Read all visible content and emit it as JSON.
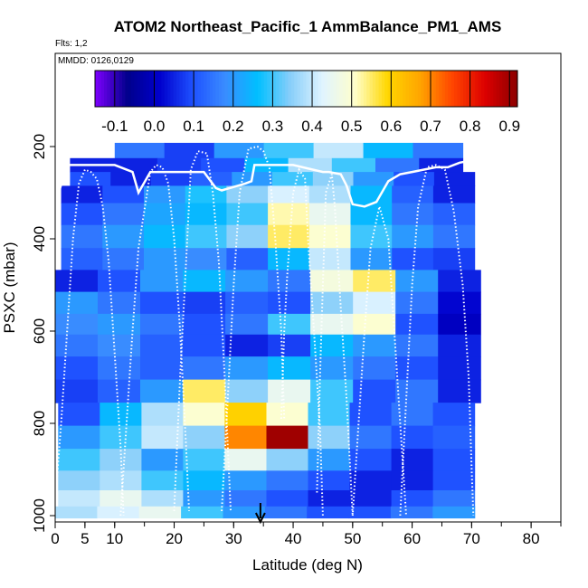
{
  "chart_data": {
    "type": "heatmap",
    "title": "ATOM2 Northeast_Pacific_1 AmmBalance_PM1_AMS",
    "flights_label": "Flts: 1,2",
    "dates_label": "MMDD: 0126,0129",
    "xlabel": "Latitude (deg N)",
    "ylabel": "PSXC (mbar)",
    "xlim": [
      0,
      85
    ],
    "ylim": [
      1000,
      0
    ],
    "x_ticks": [
      0,
      5,
      10,
      20,
      30,
      40,
      50,
      60,
      70,
      80
    ],
    "y_ticks": [
      200,
      400,
      600,
      800,
      1000
    ],
    "colorbar": {
      "ticks": [
        -0.1,
        0.0,
        0.1,
        0.2,
        0.3,
        0.4,
        0.5,
        0.6,
        0.7,
        0.8,
        0.9
      ],
      "range": [
        -0.15,
        0.92
      ],
      "colors": [
        "#7f00ff",
        "#00008b",
        "#0000cd",
        "#1e50ff",
        "#3a8cff",
        "#00bfff",
        "#87cefa",
        "#e0f4ff",
        "#ffffcc",
        "#ffd700",
        "#ffa500",
        "#ff4500",
        "#dd0000",
        "#8b0000"
      ]
    },
    "marker_latitude": 34.5,
    "layers": [
      {
        "p": 210,
        "x0": 10.0,
        "x1": 68.5,
        "v": [
          0.15,
          0.08,
          0.2,
          0.3,
          0.4,
          0.25,
          0.15
        ]
      },
      {
        "p": 240,
        "x0": 2.5,
        "x1": 68.5,
        "v": [
          0.05,
          0.05,
          0.08,
          0.1,
          0.25,
          0.38,
          0.3,
          0.15,
          0.05
        ]
      },
      {
        "p": 270,
        "x0": 2.5,
        "x1": 70.5,
        "v": [
          0.1,
          0.05,
          0.08,
          0.12,
          0.2,
          0.3,
          0.35,
          0.2,
          0.1,
          0.05
        ]
      },
      {
        "p": 300,
        "x0": 1.0,
        "x1": 70.5,
        "v": [
          0.05,
          0.1,
          0.2,
          0.28,
          0.35,
          0.42,
          0.38,
          0.25,
          0.12,
          0.05
        ]
      },
      {
        "p": 345,
        "x0": 1.0,
        "x1": 70.5,
        "v": [
          0.1,
          0.15,
          0.22,
          0.25,
          0.3,
          0.52,
          0.45,
          0.25,
          0.15,
          0.12
        ]
      },
      {
        "p": 395,
        "x0": 1.0,
        "x1": 70.5,
        "v": [
          0.15,
          0.2,
          0.25,
          0.3,
          0.35,
          0.55,
          0.5,
          0.3,
          0.2,
          0.15
        ]
      },
      {
        "p": 445,
        "x0": 1.0,
        "x1": 70.5,
        "v": [
          0.12,
          0.15,
          0.2,
          0.18,
          0.12,
          0.25,
          0.4,
          0.2,
          0.1,
          0.08
        ]
      },
      {
        "p": 490,
        "x0": 0.0,
        "x1": 71.5,
        "v": [
          0.05,
          0.1,
          0.2,
          0.25,
          0.2,
          0.15,
          0.48,
          0.55,
          0.2,
          0.05
        ]
      },
      {
        "p": 540,
        "x0": 0.0,
        "x1": 71.5,
        "v": [
          0.2,
          0.15,
          0.1,
          0.08,
          0.12,
          0.1,
          0.35,
          0.42,
          0.15,
          0.02
        ]
      },
      {
        "p": 585,
        "x0": 0.0,
        "x1": 71.5,
        "v": [
          0.18,
          0.2,
          0.15,
          0.1,
          0.15,
          0.3,
          0.45,
          0.5,
          0.1,
          0.0
        ]
      },
      {
        "p": 630,
        "x0": 0.0,
        "x1": 71.5,
        "v": [
          0.15,
          0.18,
          0.12,
          0.1,
          0.05,
          0.08,
          0.25,
          0.2,
          0.15,
          0.05
        ]
      },
      {
        "p": 680,
        "x0": 0.0,
        "x1": 71.5,
        "v": [
          0.1,
          0.15,
          0.12,
          0.15,
          0.2,
          0.25,
          0.2,
          0.15,
          0.1,
          0.05
        ]
      },
      {
        "p": 730,
        "x0": 0.0,
        "x1": 71.5,
        "v": [
          0.08,
          0.12,
          0.2,
          0.55,
          0.35,
          0.45,
          0.3,
          0.1,
          0.15,
          0.05
        ]
      },
      {
        "p": 780,
        "x0": 0.5,
        "x1": 70.5,
        "v": [
          0.1,
          0.25,
          0.38,
          0.5,
          0.6,
          0.5,
          0.3,
          0.1,
          0.15,
          0.1
        ]
      },
      {
        "p": 830,
        "x0": 0.5,
        "x1": 70.5,
        "v": [
          0.2,
          0.3,
          0.4,
          0.35,
          0.7,
          0.9,
          0.35,
          0.15,
          0.1,
          0.12
        ]
      },
      {
        "p": 880,
        "x0": 0.5,
        "x1": 70.5,
        "v": [
          0.3,
          0.35,
          0.2,
          0.3,
          0.45,
          0.35,
          0.2,
          0.1,
          0.05,
          0.1
        ]
      },
      {
        "p": 925,
        "x0": 0.5,
        "x1": 70.5,
        "v": [
          0.35,
          0.38,
          0.3,
          0.25,
          0.2,
          0.15,
          0.1,
          0.05,
          0.05,
          0.1
        ]
      },
      {
        "p": 965,
        "x0": 0.5,
        "x1": 70.5,
        "v": [
          0.4,
          0.45,
          0.38,
          0.2,
          0.15,
          0.1,
          0.05,
          0.05,
          0.1,
          0.15
        ]
      },
      {
        "p": 995,
        "x0": 0.0,
        "x1": 70.5,
        "v": [
          0.38,
          0.42,
          0.45,
          0.3,
          0.2,
          0.15,
          0.1,
          0.1,
          0.15,
          0.2
        ]
      }
    ],
    "tropopause": [
      [
        0,
        325
      ],
      [
        2,
        240
      ],
      [
        10,
        240
      ],
      [
        13,
        255
      ],
      [
        14,
        300
      ],
      [
        16,
        255
      ],
      [
        25,
        255
      ],
      [
        27,
        290
      ],
      [
        28,
        295
      ],
      [
        32,
        280
      ],
      [
        33,
        275
      ],
      [
        33.5,
        240
      ],
      [
        40,
        240
      ],
      [
        45,
        255
      ],
      [
        46,
        255
      ],
      [
        48,
        260
      ],
      [
        49,
        285
      ],
      [
        50,
        325
      ],
      [
        52,
        330
      ],
      [
        54,
        320
      ],
      [
        56,
        275
      ],
      [
        58,
        260
      ],
      [
        60,
        255
      ],
      [
        62,
        250
      ],
      [
        64,
        245
      ],
      [
        66,
        245
      ],
      [
        68,
        235
      ],
      [
        70,
        230
      ],
      [
        71,
        235
      ]
    ],
    "profiles": [
      [
        [
          0,
          970
        ],
        [
          1,
          800
        ],
        [
          2,
          600
        ],
        [
          3,
          400
        ],
        [
          4,
          280
        ],
        [
          5,
          250
        ],
        [
          6,
          255
        ],
        [
          7,
          270
        ],
        [
          8,
          330
        ],
        [
          9,
          450
        ],
        [
          10,
          650
        ],
        [
          11,
          850
        ],
        [
          11.5,
          1000
        ]
      ],
      [
        [
          11,
          1000
        ],
        [
          12,
          800
        ],
        [
          13,
          600
        ],
        [
          14,
          420
        ],
        [
          16,
          255
        ],
        [
          17,
          240
        ],
        [
          18,
          245
        ],
        [
          19,
          280
        ],
        [
          20,
          400
        ],
        [
          21,
          600
        ],
        [
          22,
          850
        ],
        [
          22.5,
          990
        ]
      ],
      [
        [
          20,
          990
        ],
        [
          21,
          700
        ],
        [
          22,
          450
        ],
        [
          22.8,
          250
        ],
        [
          24,
          210
        ],
        [
          25.5,
          215
        ],
        [
          26.5,
          300
        ],
        [
          27.5,
          450
        ],
        [
          28.5,
          700
        ],
        [
          29.5,
          990
        ]
      ],
      [
        [
          28,
          990
        ],
        [
          29,
          750
        ],
        [
          30,
          500
        ],
        [
          31,
          300
        ],
        [
          32.5,
          205
        ],
        [
          34,
          200
        ],
        [
          35,
          210
        ],
        [
          36,
          245
        ],
        [
          37,
          400
        ],
        [
          38,
          600
        ],
        [
          38.5,
          790
        ]
      ],
      [
        [
          38,
          790
        ],
        [
          38.5,
          600
        ],
        [
          39,
          480
        ],
        [
          40,
          300
        ],
        [
          41,
          250
        ],
        [
          42,
          270
        ],
        [
          42.5,
          400
        ],
        [
          43.5,
          600
        ],
        [
          44.5,
          810
        ],
        [
          45,
          1000
        ]
      ],
      [
        [
          44,
          950
        ],
        [
          44.5,
          700
        ],
        [
          45,
          500
        ],
        [
          45.5,
          300
        ],
        [
          46.5,
          260
        ],
        [
          47,
          330
        ],
        [
          48,
          550
        ],
        [
          49,
          750
        ],
        [
          50,
          1000
        ]
      ],
      [
        [
          50,
          1000
        ],
        [
          51,
          800
        ],
        [
          52,
          600
        ],
        [
          53,
          420
        ],
        [
          54.5,
          330
        ],
        [
          56,
          400
        ],
        [
          57,
          600
        ],
        [
          58,
          800
        ],
        [
          59,
          1000
        ]
      ],
      [
        [
          58,
          1000
        ],
        [
          59,
          750
        ],
        [
          60,
          500
        ],
        [
          61,
          330
        ],
        [
          62.5,
          245
        ],
        [
          64,
          240
        ],
        [
          65.5,
          250
        ],
        [
          67,
          340
        ],
        [
          68.5,
          500
        ],
        [
          69.5,
          700
        ],
        [
          70,
          900
        ],
        [
          70.3,
          1000
        ]
      ]
    ]
  }
}
